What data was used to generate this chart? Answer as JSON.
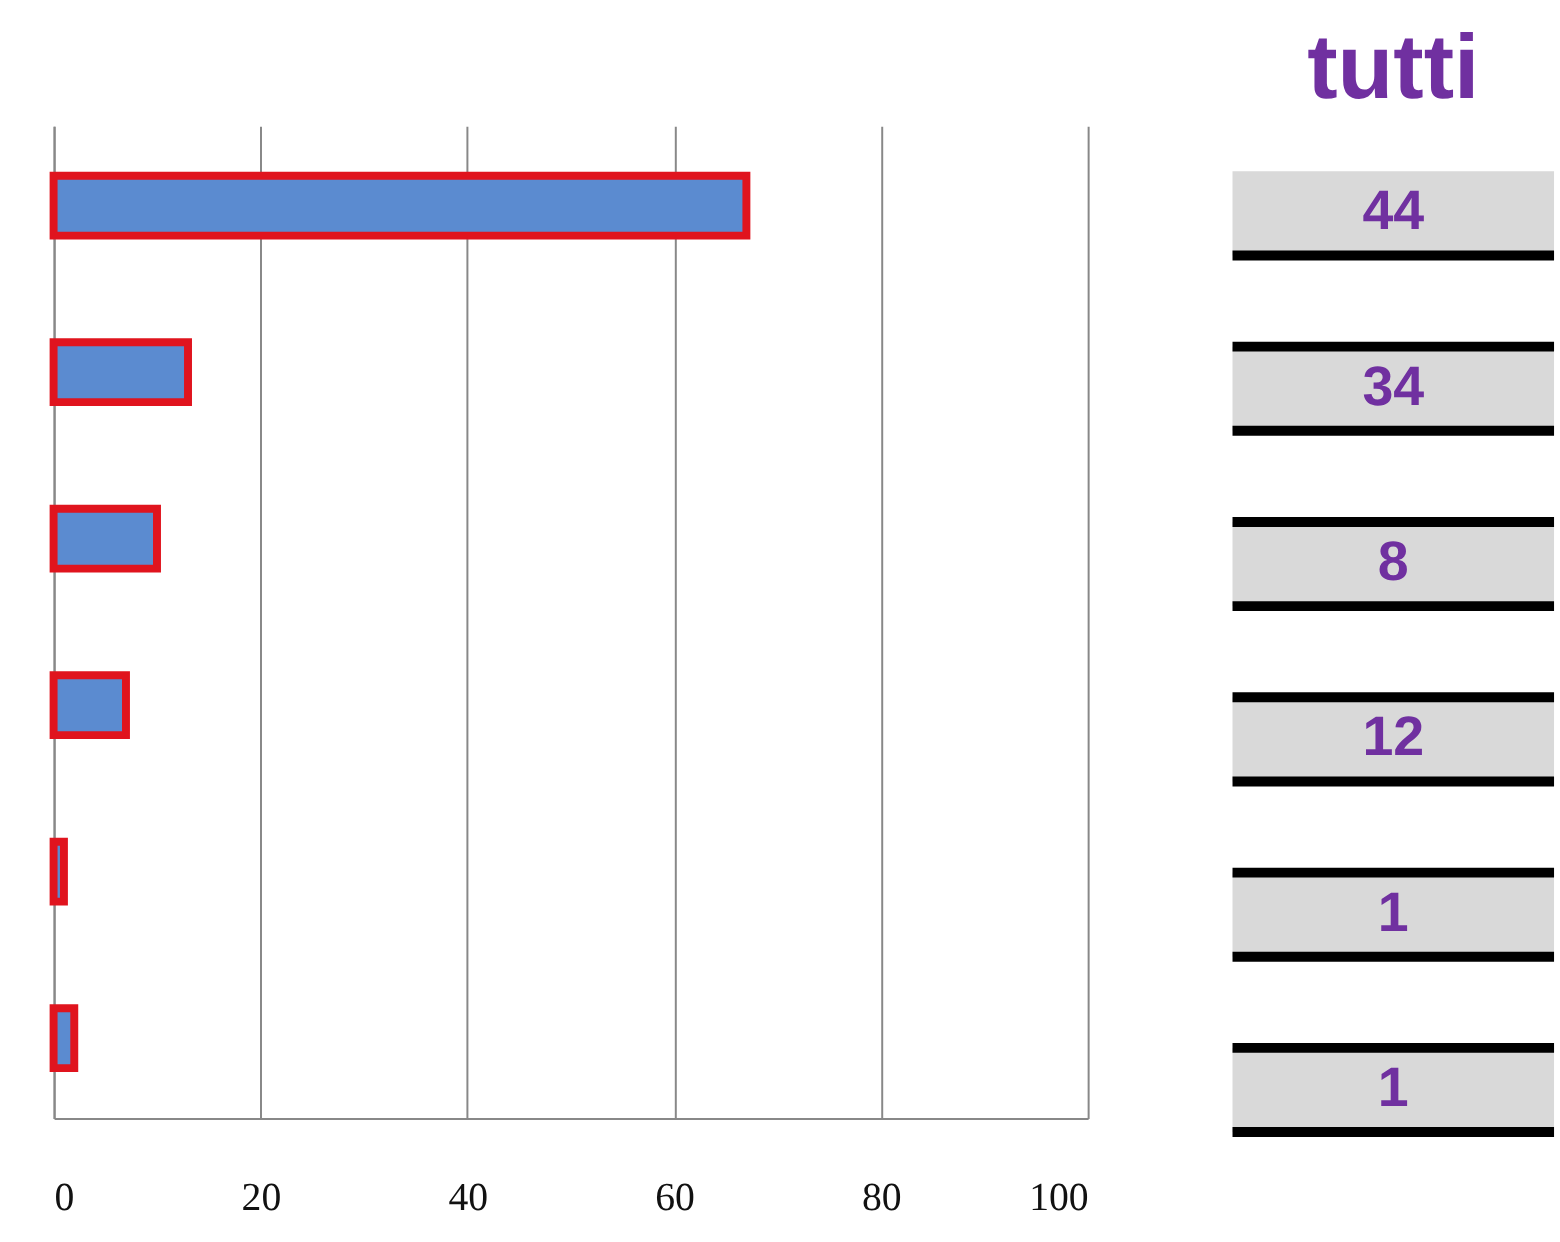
{
  "chart_data": [
    {
      "type": "bar",
      "orientation": "horizontal",
      "categories": [
        null,
        null,
        null,
        null,
        null,
        null
      ],
      "values": [
        67,
        13,
        10,
        7,
        1,
        2
      ],
      "color": "#5b8bd0",
      "xlim": [
        0,
        100
      ],
      "xticks": [
        0,
        20,
        40,
        60,
        80,
        100
      ],
      "grid": "x",
      "tick_labels": "x"
    },
    {
      "type": "other",
      "title": "tutti",
      "categories": [
        null,
        null,
        null,
        null,
        null,
        null
      ],
      "values": [
        44,
        34,
        8,
        12,
        1,
        1
      ],
      "color": "#7030a0",
      "data_labels": true
    }
  ]
}
